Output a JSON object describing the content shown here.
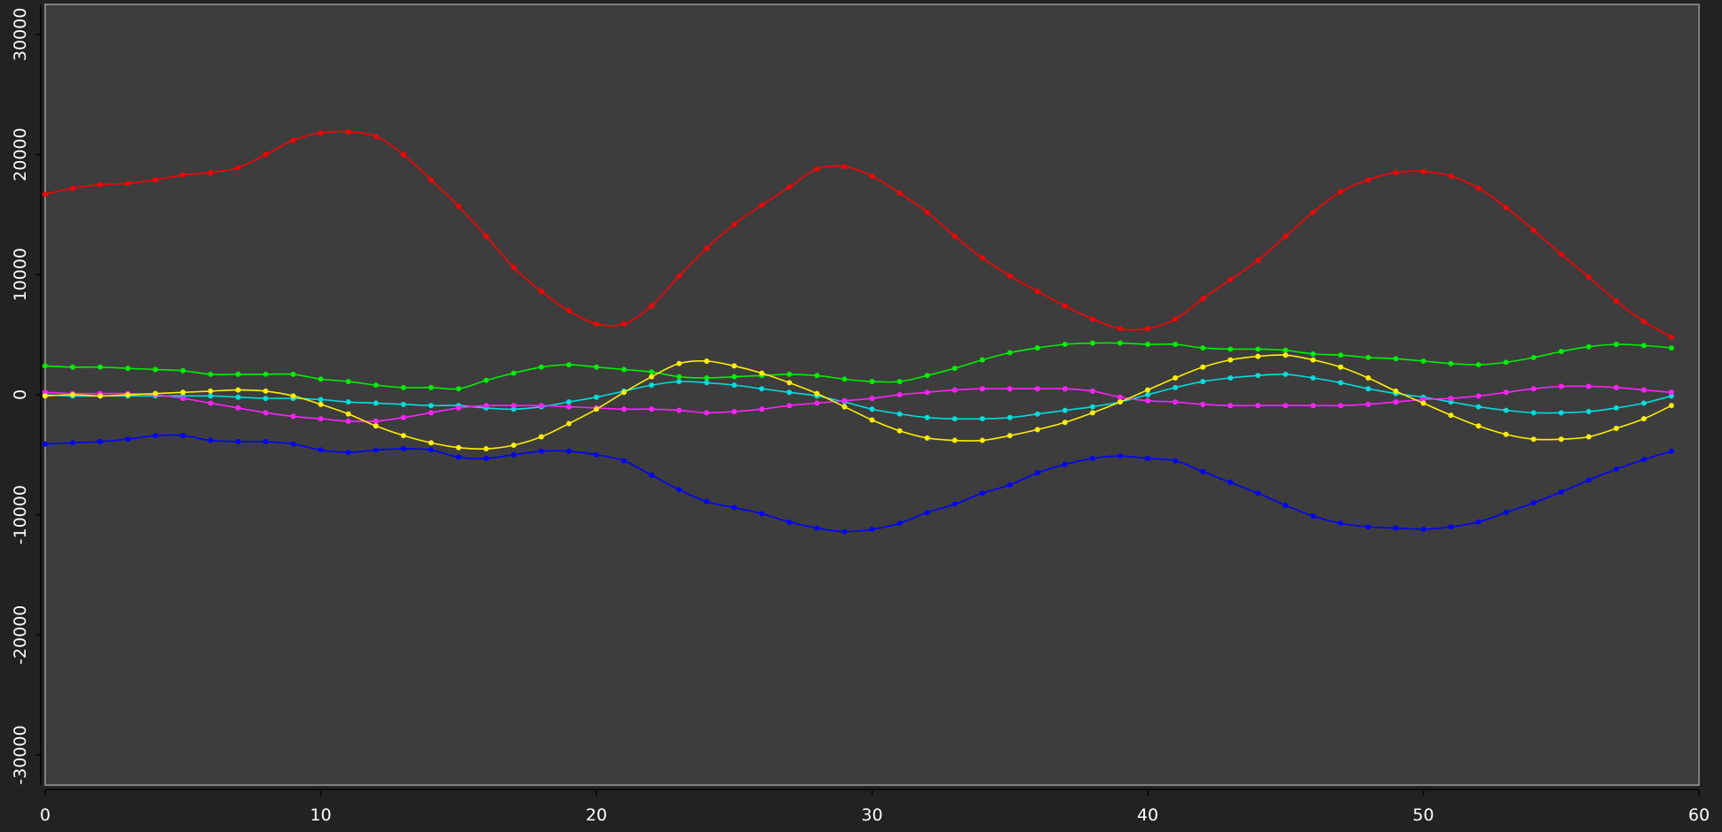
{
  "chart_data": {
    "type": "line",
    "title": "",
    "xlabel": "",
    "ylabel": "",
    "xlim": [
      0,
      60
    ],
    "ylim": [
      -32500,
      32500
    ],
    "x_ticks": [
      0,
      10,
      20,
      30,
      40,
      50,
      60
    ],
    "y_ticks": [
      -30000,
      -20000,
      -10000,
      0,
      10000,
      20000,
      30000
    ],
    "x_tick_labels": [
      "0",
      "10",
      "20",
      "30",
      "40",
      "50",
      "60"
    ],
    "y_tick_labels": [
      "-30000",
      "-20000",
      "-10000",
      "0",
      "10000",
      "20000",
      "30000"
    ],
    "grid": false,
    "legend": "none",
    "colors": {
      "background": "#222222",
      "plot_area": "#3d3d3d",
      "frame": "#9a9a9a",
      "text": "#ffffff"
    },
    "x": [
      0,
      1,
      2,
      3,
      4,
      5,
      6,
      7,
      8,
      9,
      10,
      11,
      12,
      13,
      14,
      15,
      16,
      17,
      18,
      19,
      20,
      21,
      22,
      23,
      24,
      25,
      26,
      27,
      28,
      29,
      30,
      31,
      32,
      33,
      34,
      35,
      36,
      37,
      38,
      39,
      40,
      41,
      42,
      43,
      44,
      45,
      46,
      47,
      48,
      49,
      50,
      51,
      52,
      53,
      54,
      55,
      56,
      57,
      58,
      59
    ],
    "series": [
      {
        "color": "#ff0000",
        "values": [
          16700,
          17200,
          17500,
          17600,
          17900,
          18300,
          18500,
          18900,
          20000,
          21200,
          21800,
          21900,
          21500,
          20000,
          17900,
          15700,
          13200,
          10600,
          8600,
          7000,
          5900,
          5900,
          7400,
          9900,
          12200,
          14200,
          15800,
          17300,
          18800,
          19000,
          18200,
          16800,
          15200,
          13200,
          11400,
          9900,
          8600,
          7400,
          6300,
          5500,
          5500,
          6300,
          8000,
          9600,
          11200,
          13200,
          15200,
          16900,
          17900,
          18500,
          18600,
          18200,
          17200,
          15600,
          13700,
          11700,
          9800,
          7800,
          6100,
          4800
        ]
      },
      {
        "color": "#00ee00",
        "values": [
          2400,
          2300,
          2300,
          2200,
          2100,
          2000,
          1700,
          1700,
          1700,
          1700,
          1300,
          1100,
          800,
          600,
          600,
          500,
          1200,
          1800,
          2300,
          2500,
          2300,
          2100,
          1900,
          1500,
          1400,
          1500,
          1600,
          1700,
          1600,
          1300,
          1100,
          1100,
          1600,
          2200,
          2900,
          3500,
          3900,
          4200,
          4300,
          4300,
          4200,
          4200,
          3900,
          3800,
          3800,
          3700,
          3400,
          3300,
          3100,
          3000,
          2800,
          2600,
          2500,
          2700,
          3100,
          3600,
          4000,
          4200,
          4100,
          3900
        ]
      },
      {
        "color": "#00dddd",
        "values": [
          0,
          -100,
          -100,
          -100,
          -100,
          -100,
          -100,
          -200,
          -300,
          -300,
          -400,
          -600,
          -700,
          -800,
          -900,
          -900,
          -1100,
          -1200,
          -1000,
          -600,
          -200,
          300,
          800,
          1100,
          1000,
          800,
          500,
          200,
          -100,
          -600,
          -1200,
          -1600,
          -1900,
          -2000,
          -2000,
          -1900,
          -1600,
          -1300,
          -1000,
          -600,
          0,
          600,
          1100,
          1400,
          1600,
          1700,
          1400,
          1000,
          500,
          100,
          -200,
          -600,
          -1000,
          -1300,
          -1500,
          -1500,
          -1400,
          -1100,
          -700,
          -100
        ]
      },
      {
        "color": "#ff22ff",
        "values": [
          200,
          100,
          100,
          100,
          0,
          -300,
          -700,
          -1100,
          -1500,
          -1800,
          -2000,
          -2200,
          -2200,
          -1900,
          -1500,
          -1100,
          -900,
          -900,
          -900,
          -1000,
          -1100,
          -1200,
          -1200,
          -1300,
          -1500,
          -1400,
          -1200,
          -900,
          -700,
          -500,
          -300,
          0,
          200,
          400,
          500,
          500,
          500,
          500,
          300,
          -200,
          -500,
          -600,
          -800,
          -900,
          -900,
          -900,
          -900,
          -900,
          -800,
          -600,
          -400,
          -300,
          -100,
          200,
          500,
          700,
          700,
          600,
          400,
          200
        ]
      },
      {
        "color": "#ffee00",
        "values": [
          -100,
          0,
          -100,
          0,
          100,
          200,
          300,
          400,
          300,
          -100,
          -800,
          -1600,
          -2600,
          -3400,
          -4000,
          -4400,
          -4500,
          -4200,
          -3500,
          -2400,
          -1200,
          200,
          1500,
          2600,
          2800,
          2400,
          1800,
          1000,
          100,
          -1000,
          -2100,
          -3000,
          -3600,
          -3800,
          -3800,
          -3400,
          -2900,
          -2300,
          -1500,
          -600,
          400,
          1400,
          2300,
          2900,
          3200,
          3300,
          2900,
          2300,
          1400,
          300,
          -700,
          -1700,
          -2600,
          -3300,
          -3700,
          -3700,
          -3500,
          -2800,
          -2000,
          -900
        ]
      },
      {
        "color": "#0000ff",
        "values": [
          -4100,
          -4000,
          -3900,
          -3700,
          -3400,
          -3400,
          -3800,
          -3900,
          -3900,
          -4100,
          -4600,
          -4800,
          -4600,
          -4500,
          -4600,
          -5200,
          -5300,
          -5000,
          -4700,
          -4700,
          -5000,
          -5500,
          -6700,
          -7900,
          -8900,
          -9400,
          -9900,
          -10600,
          -11100,
          -11400,
          -11200,
          -10700,
          -9800,
          -9100,
          -8200,
          -7500,
          -6500,
          -5800,
          -5300,
          -5100,
          -5300,
          -5500,
          -6400,
          -7300,
          -8200,
          -9200,
          -10100,
          -10700,
          -11000,
          -11100,
          -11200,
          -11000,
          -10600,
          -9800,
          -9000,
          -8100,
          -7100,
          -6200,
          -5400,
          -4700
        ]
      }
    ]
  }
}
